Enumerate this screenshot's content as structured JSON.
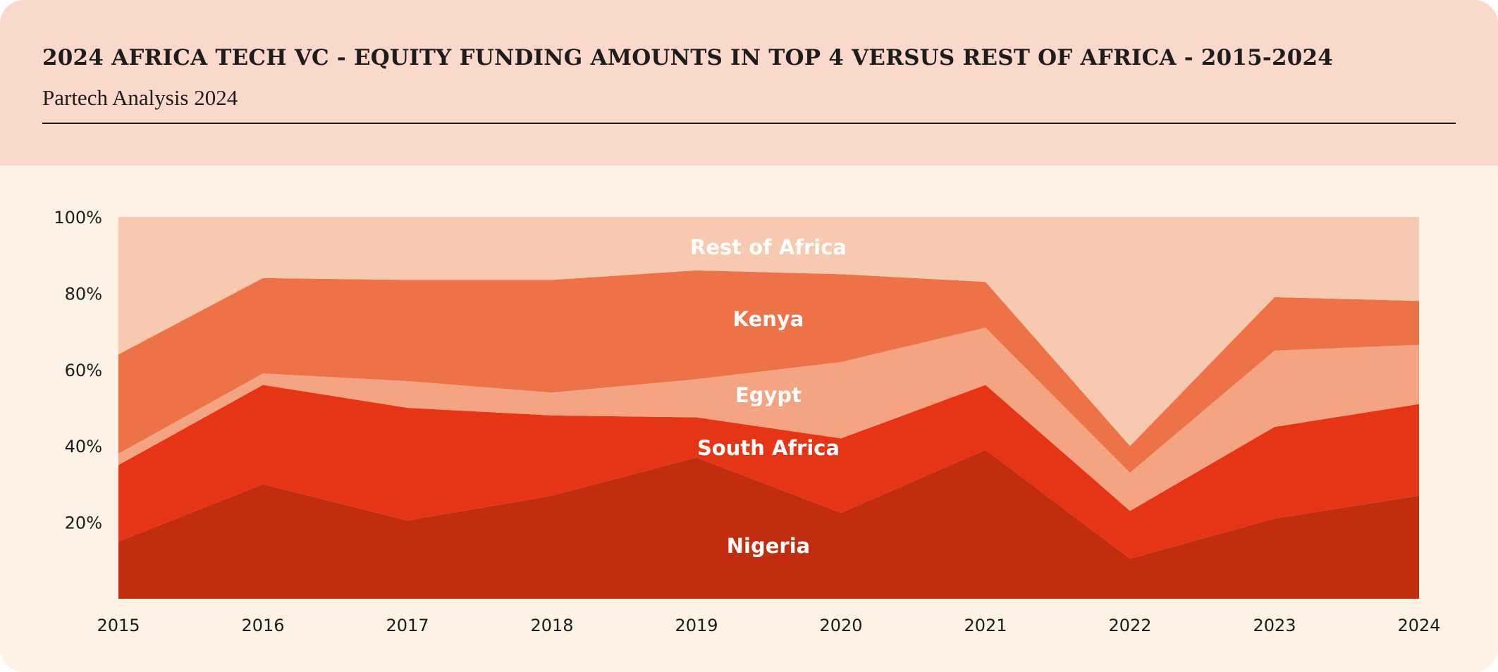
{
  "header": {
    "title": "2024 AFRICA TECH VC - EQUITY FUNDING AMOUNTS IN TOP 4 VERSUS REST OF AFRICA - 2015-2024",
    "subtitle": "Partech Analysis 2024"
  },
  "chart_data": {
    "type": "area",
    "stacked": true,
    "title": "2024 AFRICA TECH VC - EQUITY FUNDING AMOUNTS IN TOP 4 VERSUS REST OF AFRICA - 2015-2024",
    "subtitle": "Partech Analysis 2024",
    "xlabel": "",
    "ylabel": "",
    "ylim": [
      0,
      100
    ],
    "y_ticks": [
      "20%",
      "40%",
      "60%",
      "80%",
      "100%"
    ],
    "y_tick_values": [
      20,
      40,
      60,
      80,
      100
    ],
    "x": [
      "2015",
      "2016",
      "2017",
      "2018",
      "2019",
      "2020",
      "2021",
      "2022",
      "2023",
      "2024"
    ],
    "grid": false,
    "legend": "inline labels",
    "series": [
      {
        "name": "Nigeria",
        "color": "#C22D10",
        "values": [
          15,
          30,
          20.5,
          27,
          37,
          22.5,
          39,
          10.5,
          21,
          27
        ]
      },
      {
        "name": "South Africa",
        "color": "#E63416",
        "values": [
          20,
          26,
          29.5,
          21,
          10.5,
          19.5,
          17,
          12.5,
          24,
          24
        ]
      },
      {
        "name": "Egypt",
        "color": "#F4A482",
        "values": [
          3,
          3,
          7,
          6,
          10,
          20,
          15,
          10,
          20,
          15.5
        ]
      },
      {
        "name": "Kenya",
        "color": "#EE7248",
        "values": [
          26,
          25,
          26.5,
          29.5,
          28.5,
          23,
          12,
          7,
          14,
          11.5
        ]
      },
      {
        "name": "Rest of Africa",
        "color": "#F8C9B1",
        "values": [
          36,
          16,
          16.5,
          16.5,
          14,
          15,
          17,
          60,
          21,
          22
        ]
      }
    ]
  }
}
